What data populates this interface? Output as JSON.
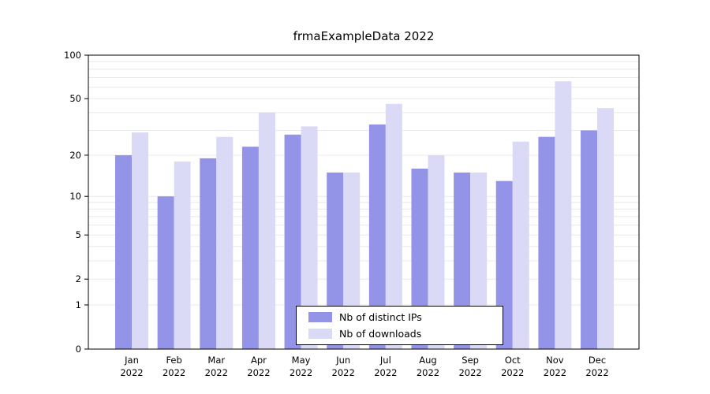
{
  "chart_data": {
    "type": "bar",
    "title": "frmaExampleData 2022",
    "categories": [
      "Jan",
      "Feb",
      "Mar",
      "Apr",
      "May",
      "Jun",
      "Jul",
      "Aug",
      "Sep",
      "Oct",
      "Nov",
      "Dec"
    ],
    "x_year_label": "2022",
    "series": [
      {
        "name": "Nb of distinct IPs",
        "color": "#9394e8",
        "values": [
          20,
          10,
          19,
          23,
          28,
          15,
          33,
          16,
          15,
          13,
          27,
          30
        ]
      },
      {
        "name": "Nb of downloads",
        "color": "#dadaf7",
        "values": [
          29,
          18,
          27,
          40,
          32,
          15,
          46,
          20,
          15,
          25,
          66,
          43
        ]
      }
    ],
    "y_ticks": [
      0,
      1,
      2,
      5,
      10,
      20,
      50,
      100
    ],
    "y_scale": "log10(1+v)",
    "ylim": [
      0,
      100
    ],
    "grid": true,
    "gridline_color": "#e8e8e8",
    "legend_position": "bottom-center-inside"
  }
}
